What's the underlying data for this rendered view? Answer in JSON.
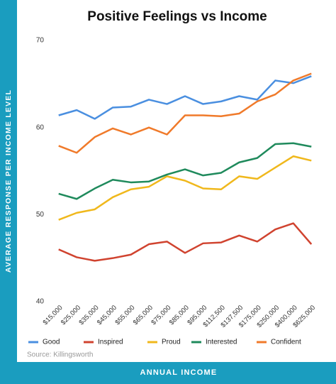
{
  "chart_data": {
    "type": "line",
    "title": "Positive Feelings vs Income",
    "y_label": "AVERAGE RESPONSE PER INCOME LEVEL",
    "x_label": "ANNUAL INCOME",
    "source": "Source: Killingsworth",
    "categories": [
      "$15,000",
      "$25,000",
      "$35,000",
      "$45,000",
      "$55,000",
      "$65,000",
      "$75,000",
      "$85,000",
      "$95,000",
      "$112,500",
      "$137,500",
      "$175,000",
      "$250,000",
      "$400,000",
      "$625,000"
    ],
    "series": [
      {
        "name": "Good",
        "color": "#4a8fe0",
        "values": [
          61.4,
          62.0,
          61.0,
          62.3,
          62.4,
          63.2,
          62.7,
          63.6,
          62.7,
          63.0,
          63.6,
          63.2,
          65.4,
          65.1,
          65.9
        ]
      },
      {
        "name": "Inspired",
        "color": "#d0432f",
        "values": [
          46.0,
          45.1,
          44.7,
          45.0,
          45.4,
          46.6,
          46.9,
          45.6,
          46.7,
          46.8,
          47.6,
          46.9,
          48.3,
          49.0,
          46.6
        ]
      },
      {
        "name": "Proud",
        "color": "#f0b81c",
        "values": [
          49.4,
          50.2,
          50.6,
          52.0,
          52.9,
          53.2,
          54.4,
          53.9,
          53.0,
          52.9,
          54.4,
          54.1,
          55.4,
          56.7,
          56.2
        ]
      },
      {
        "name": "Interested",
        "color": "#1f8a5c",
        "values": [
          52.4,
          51.8,
          53.0,
          54.0,
          53.7,
          53.8,
          54.6,
          55.2,
          54.5,
          54.8,
          56.0,
          56.5,
          58.1,
          58.2,
          57.8
        ]
      },
      {
        "name": "Confident",
        "color": "#f07a2a",
        "values": [
          57.9,
          57.1,
          58.9,
          59.9,
          59.2,
          60.0,
          59.2,
          61.4,
          61.4,
          61.3,
          61.6,
          63.0,
          63.8,
          65.4,
          66.2
        ]
      }
    ],
    "ylim": [
      40,
      70
    ],
    "yticks": [
      40,
      50,
      60,
      70
    ],
    "grid": false
  }
}
